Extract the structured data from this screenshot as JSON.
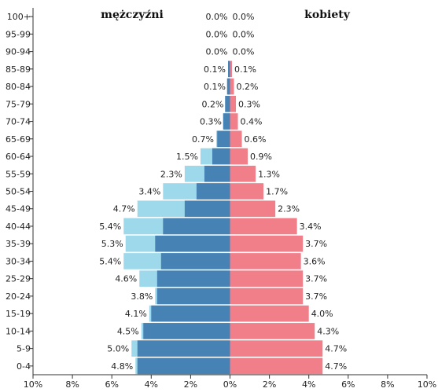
{
  "chart_data": {
    "type": "bar",
    "orientation": "horizontal",
    "subtype": "population-pyramid",
    "headers": {
      "left": "mężczyźni",
      "right": "kobiety"
    },
    "age_groups": [
      "100+",
      "95-99",
      "90-94",
      "85-89",
      "80-84",
      "75-79",
      "70-74",
      "65-69",
      "60-64",
      "55-59",
      "50-54",
      "45-49",
      "40-44",
      "35-39",
      "30-34",
      "25-29",
      "20-24",
      "15-19",
      "10-14",
      "5-9",
      "0-4"
    ],
    "series": [
      {
        "side": "left",
        "color": "#4682b4",
        "values": [
          0.0,
          0.0,
          0.0,
          0.1,
          0.15,
          0.25,
          0.35,
          0.65,
          0.9,
          1.3,
          1.7,
          2.3,
          3.4,
          3.8,
          3.5,
          3.7,
          3.7,
          4.0,
          4.4,
          4.7,
          4.7
        ]
      },
      {
        "side": "left",
        "color": "#9dd9ea",
        "values": [
          0.0,
          0.0,
          0.0,
          0.1,
          0.1,
          0.2,
          0.3,
          0.7,
          1.5,
          2.3,
          3.4,
          4.7,
          5.4,
          5.3,
          5.4,
          4.6,
          3.8,
          4.1,
          4.5,
          5.0,
          4.8
        ]
      },
      {
        "side": "right",
        "color": "#f07f8a",
        "values": [
          0.0,
          0.0,
          0.0,
          0.1,
          0.2,
          0.3,
          0.4,
          0.6,
          0.9,
          1.3,
          1.7,
          2.3,
          3.4,
          3.7,
          3.6,
          3.7,
          3.7,
          4.0,
          4.3,
          4.7,
          4.7
        ]
      }
    ],
    "left_labels": [
      "0.0%",
      "0.0%",
      "0.0%",
      "0.1%",
      "0.1%",
      "0.2%",
      "0.3%",
      "0.7%",
      "1.5%",
      "2.3%",
      "3.4%",
      "4.7%",
      "5.4%",
      "5.3%",
      "5.4%",
      "4.6%",
      "3.8%",
      "4.1%",
      "4.5%",
      "5.0%",
      "4.8%"
    ],
    "right_labels": [
      "0.0%",
      "0.0%",
      "0.0%",
      "0.1%",
      "0.2%",
      "0.3%",
      "0.4%",
      "0.6%",
      "0.9%",
      "1.3%",
      "1.7%",
      "2.3%",
      "3.4%",
      "3.7%",
      "3.6%",
      "3.7%",
      "3.7%",
      "4.0%",
      "4.3%",
      "4.7%",
      "4.7%"
    ],
    "x_ticks": [
      "10%",
      "8%",
      "6%",
      "4%",
      "2%",
      "0%",
      "2%",
      "4%",
      "6%",
      "8%",
      "10%"
    ],
    "xlim": [
      -10,
      10
    ],
    "grid": false,
    "legend": "none"
  }
}
